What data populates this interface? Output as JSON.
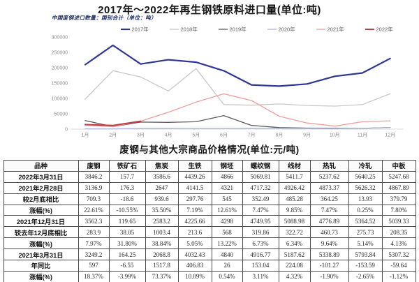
{
  "chart": {
    "note": "中国废钢进口数量：国别合计（单位：吨）"
  },
  "chart_data": {
    "type": "line",
    "title": "2017年～2022年再生钢铁原料进口量(单位:吨)",
    "unit": "吨",
    "x": [
      "1月",
      "2月",
      "3月",
      "4月",
      "5月",
      "6月",
      "7月",
      "8月",
      "9月",
      "10月",
      "11月",
      "12月"
    ],
    "y_ticks": [
      0,
      50000,
      100000,
      150000,
      200000,
      250000,
      300000
    ],
    "ylim": [
      0,
      300000
    ],
    "grid": false,
    "legend_position": "top",
    "series": [
      {
        "name": "2017年",
        "color": "#2F3699",
        "width": 2.2,
        "values": [
          210000,
          273000,
          212000,
          226000,
          218000,
          190000,
          144000,
          140000,
          147000,
          172000,
          183000,
          230000
        ]
      },
      {
        "name": "2018年",
        "color": "#CBC7C5",
        "width": 1.3,
        "values": [
          98000,
          190000,
          170000,
          124000,
          197000,
          80000,
          78000,
          82000,
          77000,
          75000,
          80000,
          115000
        ]
      },
      {
        "name": "2019年",
        "color": "#5B5B5B",
        "width": 1.3,
        "values": [
          28000,
          8000,
          23000,
          22000,
          24000,
          44000,
          12000,
          5000,
          3500,
          3000,
          2500,
          5500
        ]
      },
      {
        "name": "2020年",
        "color": "#AAB4E0",
        "width": 1.3,
        "values": [
          800,
          800,
          2500,
          3000,
          2500,
          2500,
          2800,
          2500,
          2200,
          2000,
          2500,
          5500
        ]
      },
      {
        "name": "2021年",
        "color": "#F19C9B",
        "width": 1.3,
        "values": [
          13000,
          8000,
          26000,
          55000,
          88000,
          115000,
          93000,
          42000,
          20000,
          10000,
          24000,
          27000
        ]
      },
      {
        "name": "2022年",
        "color": "#BE3F42",
        "width": 2.0,
        "values": [
          15000,
          12000,
          26000
        ]
      }
    ]
  },
  "table": {
    "title": "废钢与其他大宗商品价格情况(单位:元/吨)",
    "headers": [
      "品种",
      "废钢",
      "铁矿石",
      "焦炭",
      "生铁",
      "钢坯",
      "螺纹钢",
      "线材",
      "热轧",
      "冷轧",
      "中板"
    ],
    "rows": [
      [
        "2022年3月31日",
        "3846.2",
        "157.7",
        "3586.6",
        "4439.26",
        "4866",
        "5069.81",
        "5411.7",
        "5237.62",
        "5640.25",
        "5247.68"
      ],
      [
        "2021年2月28日",
        "3136.9",
        "176.3",
        "2647",
        "4141.5",
        "4321",
        "4717.32",
        "4926.42",
        "4873.37",
        "5626.32",
        "4867.89"
      ],
      [
        "较2月底相比",
        "709.3",
        "-18.6",
        "939.6",
        "297.76",
        "545",
        "352.49",
        "485.28",
        "364.25",
        "13.93",
        "379.79"
      ],
      [
        "涨幅(%)",
        "22.61%",
        "-10.55%",
        "35.50%",
        "7.19%",
        "12.61%",
        "7.47%",
        "9.85%",
        "7.47%",
        "0.25%",
        "7.80%"
      ],
      [
        "2021年12月31日",
        "3562.3",
        "119.65",
        "2583.2",
        "4225.66",
        "4298",
        "4749.95",
        "5088.98",
        "4776.89",
        "5364.52",
        "5039.33"
      ],
      [
        "较去年12月底相比",
        "283.9",
        "38.05",
        "1003.4",
        "213.6",
        "568",
        "319.86",
        "322.72",
        "460.73",
        "275.73",
        "208.35"
      ],
      [
        "涨幅(%)",
        "7.97%",
        "31.80%",
        "38.84%",
        "5.05%",
        "13.22%",
        "6.73%",
        "6.34%",
        "9.64%",
        "5.14%",
        "4.13%"
      ],
      [
        "2021年3月31日",
        "3249.2",
        "164.25",
        "2068.8",
        "4032.43",
        "4840",
        "4916.77",
        "5187.62",
        "5338.89",
        "5793.84",
        "5307.32"
      ],
      [
        "年同比",
        "597",
        "-6.55",
        "1517.8",
        "406.83",
        "26",
        "153.04",
        "224.08",
        "-101.27",
        "-153.59",
        "-59.64"
      ],
      [
        "涨幅(%)",
        "18.37%",
        "-3.99%",
        "73.37%",
        "10.09%",
        "0.54%",
        "3.11%",
        "4.32%",
        "-1.90%",
        "-2.65%",
        "-1.12%"
      ]
    ]
  }
}
